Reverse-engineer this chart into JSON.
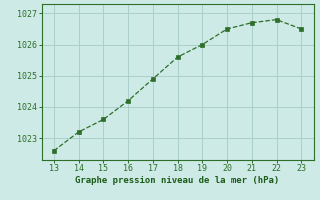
{
  "x": [
    13,
    14,
    15,
    16,
    17,
    18,
    19,
    20,
    21,
    22,
    23
  ],
  "y": [
    1022.6,
    1023.2,
    1023.6,
    1024.2,
    1024.9,
    1025.6,
    1026.0,
    1026.5,
    1026.7,
    1026.8,
    1026.5
  ],
  "line_color": "#2d6e2a",
  "marker_color": "#2d6e2a",
  "bg_color": "#ceeae6",
  "grid_color": "#aacfca",
  "xlabel": "Graphe pression niveau de la mer (hPa)",
  "xlabel_color": "#1a5c18",
  "tick_color": "#2d6e2a",
  "spine_color": "#2d6e2a",
  "xlim": [
    12.5,
    23.5
  ],
  "ylim": [
    1022.3,
    1027.3
  ],
  "yticks": [
    1023,
    1024,
    1025,
    1026,
    1027
  ],
  "xticks": [
    13,
    14,
    15,
    16,
    17,
    18,
    19,
    20,
    21,
    22,
    23
  ],
  "tick_fontsize": 6.0,
  "xlabel_fontsize": 6.5
}
